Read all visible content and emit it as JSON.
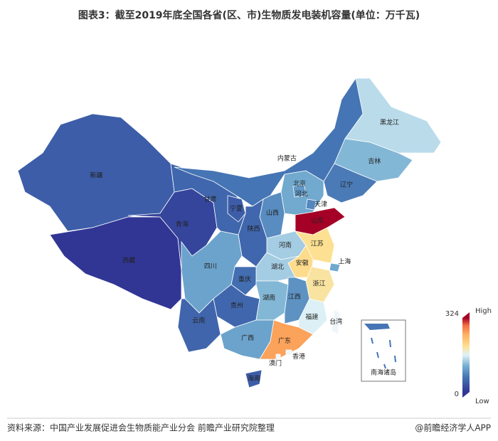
{
  "title": "图表3：截至2019年底全国各省(区、市)生物质发电装机容量(单位：万千瓦)",
  "map": {
    "regions": [
      {
        "name": "新疆",
        "value": 40
      },
      {
        "name": "西藏",
        "value": 0
      },
      {
        "name": "青海",
        "value": 15
      },
      {
        "name": "甘肃",
        "value": 50
      },
      {
        "name": "内蒙古",
        "value": 65
      },
      {
        "name": "黑龙江",
        "value": 145
      },
      {
        "name": "吉林",
        "value": 120
      },
      {
        "name": "辽宁",
        "value": 70
      },
      {
        "name": "河北",
        "value": 110
      },
      {
        "name": "北京",
        "value": 95
      },
      {
        "name": "天津",
        "value": 80
      },
      {
        "name": "山西",
        "value": 85
      },
      {
        "name": "山东",
        "value": 324
      },
      {
        "name": "河南",
        "value": 135
      },
      {
        "name": "陕西",
        "value": 50
      },
      {
        "name": "宁夏",
        "value": 40
      },
      {
        "name": "江苏",
        "value": 200
      },
      {
        "name": "安徽",
        "value": 205
      },
      {
        "name": "上海",
        "value": 110
      },
      {
        "name": "浙江",
        "value": 195
      },
      {
        "name": "湖北",
        "value": 135
      },
      {
        "name": "重庆",
        "value": 58
      },
      {
        "name": "四川",
        "value": 105
      },
      {
        "name": "贵州",
        "value": 50
      },
      {
        "name": "云南",
        "value": 48
      },
      {
        "name": "湖南",
        "value": 120
      },
      {
        "name": "江西",
        "value": 90
      },
      {
        "name": "福建",
        "value": 160
      },
      {
        "name": "广西",
        "value": 105
      },
      {
        "name": "广东",
        "value": 260
      },
      {
        "name": "海南",
        "value": 40
      },
      {
        "name": "台湾",
        "value": null
      },
      {
        "name": "香港",
        "value": null
      },
      {
        "name": "澳门",
        "value": null
      }
    ],
    "inset_label": "南海诸岛",
    "legend": {
      "max": 324,
      "min": 0,
      "high_label": "High",
      "low_label": "Low"
    }
  },
  "footer": {
    "source": "资料来源：中国产业发展促进会生物质能产业分会  前瞻产业研究院整理",
    "credit": "@前瞻经济学人APP"
  }
}
